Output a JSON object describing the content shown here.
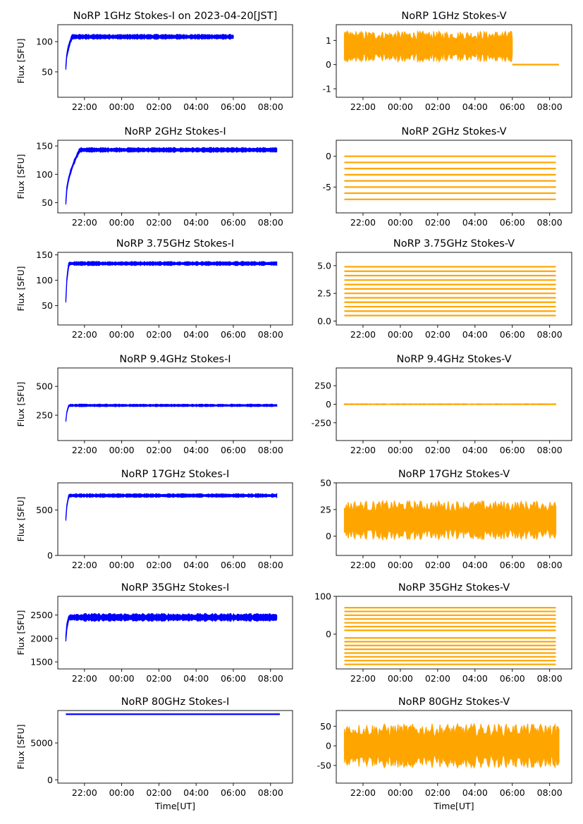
{
  "colors": {
    "stokes_i": "#0000ff",
    "stokes_v": "#ffa500",
    "axis": "#000000",
    "background": "#ffffff"
  },
  "time_ticks": [
    "22:00",
    "00:00",
    "02:00",
    "04:00",
    "06:00",
    "08:00"
  ],
  "ylabel_left": "Flux [SFU]",
  "xlabel_bottom": "Time[UT]",
  "chart_data": [
    {
      "type": "scatter",
      "title": "NoRP 1GHz Stokes-I on 2023-04-20[JST]",
      "ylabel": "Flux [SFU]",
      "xlabel": "",
      "x_range": [
        "20:34",
        "09:11"
      ],
      "ylim": [
        8,
        128
      ],
      "yticks": [
        50,
        100
      ],
      "series": [
        {
          "color": "#0000ff",
          "shape": "rise",
          "start": "21:00",
          "end": "06:00",
          "rise_to": "21:20",
          "y0": 57,
          "level": 108,
          "spread": 3
        }
      ]
    },
    {
      "type": "scatter",
      "title": "NoRP 1GHz Stokes-V",
      "ylabel": "",
      "xlabel": "",
      "x_range": [
        "20:34",
        "09:11"
      ],
      "ylim": [
        -1.35,
        1.65
      ],
      "yticks": [
        -1,
        0,
        1
      ],
      "series": [
        {
          "color": "#ffa500",
          "shape": "noise",
          "start": "21:00",
          "end": "06:00",
          "level": 0.75,
          "spread": 0.45
        },
        {
          "color": "#ffa500",
          "shape": "flat",
          "start": "06:00",
          "end": "08:30",
          "level": 0
        }
      ]
    },
    {
      "type": "scatter",
      "title": "NoRP 2GHz Stokes-I",
      "ylabel": "Flux [SFU]",
      "xlabel": "",
      "x_range": [
        "20:34",
        "09:11"
      ],
      "ylim": [
        32,
        160
      ],
      "yticks": [
        50,
        100,
        150
      ],
      "series": [
        {
          "color": "#0000ff",
          "shape": "rise",
          "start": "21:00",
          "end": "08:20",
          "rise_to": "21:45",
          "y0": 50,
          "level": 143,
          "spread": 3
        }
      ]
    },
    {
      "type": "scatter",
      "title": "NoRP 2GHz Stokes-V",
      "ylabel": "",
      "xlabel": "",
      "x_range": [
        "20:34",
        "09:11"
      ],
      "ylim": [
        -9.2,
        2.6
      ],
      "yticks": [
        -5,
        0
      ],
      "series": [
        {
          "color": "#ffa500",
          "shape": "stripes",
          "start": "21:00",
          "end": "08:20",
          "levels": [
            0,
            -1,
            -2,
            -3,
            -4,
            -5,
            -6,
            -7
          ]
        }
      ]
    },
    {
      "type": "scatter",
      "title": "NoRP 3.75GHz Stokes-I",
      "ylabel": "Flux [SFU]",
      "xlabel": "",
      "x_range": [
        "20:34",
        "09:11"
      ],
      "ylim": [
        12,
        155
      ],
      "yticks": [
        50,
        100,
        150
      ],
      "series": [
        {
          "color": "#0000ff",
          "shape": "rise",
          "start": "21:00",
          "end": "08:20",
          "rise_to": "21:10",
          "y0": 60,
          "level": 133,
          "spread": 3
        }
      ]
    },
    {
      "type": "scatter",
      "title": "NoRP 3.75GHz Stokes-V",
      "ylabel": "",
      "xlabel": "",
      "x_range": [
        "20:34",
        "09:11"
      ],
      "ylim": [
        -0.35,
        6.2
      ],
      "yticks": [
        0,
        2.5,
        5
      ],
      "ytick_labels": [
        "0.0",
        "2.5",
        "5.0"
      ],
      "series": [
        {
          "color": "#ffa500",
          "shape": "stripes",
          "start": "21:00",
          "end": "08:20",
          "levels": [
            0.5,
            0.9,
            1.3,
            1.7,
            2.1,
            2.5,
            2.9,
            3.3,
            3.7,
            4.1,
            4.5,
            4.9
          ]
        }
      ]
    },
    {
      "type": "scatter",
      "title": "NoRP 9.4GHz Stokes-I",
      "ylabel": "Flux [SFU]",
      "xlabel": "",
      "x_range": [
        "20:34",
        "09:11"
      ],
      "ylim": [
        30,
        660
      ],
      "yticks": [
        250,
        500
      ],
      "series": [
        {
          "color": "#0000ff",
          "shape": "rise",
          "start": "21:00",
          "end": "08:20",
          "rise_to": "21:10",
          "y0": 200,
          "level": 335,
          "spread": 8
        }
      ]
    },
    {
      "type": "scatter",
      "title": "NoRP 9.4GHz Stokes-V",
      "ylabel": "",
      "xlabel": "",
      "x_range": [
        "20:34",
        "09:11"
      ],
      "ylim": [
        -490,
        490
      ],
      "yticks": [
        -250,
        0,
        250
      ],
      "series": [
        {
          "color": "#ffa500",
          "shape": "noise",
          "start": "21:00",
          "end": "08:20",
          "level": 0,
          "spread": 5
        }
      ]
    },
    {
      "type": "scatter",
      "title": "NoRP 17GHz Stokes-I",
      "ylabel": "Flux [SFU]",
      "xlabel": "",
      "x_range": [
        "20:34",
        "09:11"
      ],
      "ylim": [
        0,
        800
      ],
      "yticks": [
        0,
        500
      ],
      "series": [
        {
          "color": "#0000ff",
          "shape": "rise",
          "start": "21:00",
          "end": "08:20",
          "rise_to": "21:10",
          "y0": 400,
          "level": 660,
          "spread": 15
        }
      ]
    },
    {
      "type": "scatter",
      "title": "NoRP 17GHz Stokes-V",
      "ylabel": "",
      "xlabel": "",
      "x_range": [
        "20:34",
        "09:11"
      ],
      "ylim": [
        -18,
        50
      ],
      "yticks": [
        0,
        25,
        50
      ],
      "series": [
        {
          "color": "#ffa500",
          "shape": "noise",
          "start": "21:00",
          "end": "08:20",
          "level": 15,
          "spread": 13
        }
      ]
    },
    {
      "type": "scatter",
      "title": "NoRP 35GHz Stokes-I",
      "ylabel": "Flux [SFU]",
      "xlabel": "",
      "x_range": [
        "20:34",
        "09:11"
      ],
      "ylim": [
        1350,
        2900
      ],
      "yticks": [
        1500,
        2000,
        2500
      ],
      "series": [
        {
          "color": "#0000ff",
          "shape": "rise",
          "start": "21:00",
          "end": "08:20",
          "rise_to": "21:10",
          "y0": 2000,
          "level": 2450,
          "spread": 60
        }
      ]
    },
    {
      "type": "scatter",
      "title": "NoRP 35GHz Stokes-V",
      "ylabel": "",
      "xlabel": "",
      "x_range": [
        "20:34",
        "09:11"
      ],
      "ylim": [
        -92,
        100
      ],
      "yticks": [
        0,
        100
      ],
      "series": [
        {
          "color": "#ffa500",
          "shape": "stripes",
          "start": "21:00",
          "end": "08:20",
          "levels": [
            70,
            60,
            50,
            40,
            30,
            20,
            10,
            -10,
            -20,
            -30,
            -40,
            -50,
            -60,
            -70,
            -80
          ]
        }
      ]
    },
    {
      "type": "scatter",
      "title": "NoRP 80GHz Stokes-I",
      "ylabel": "Flux [SFU]",
      "xlabel": "Time[UT]",
      "x_range": [
        "20:34",
        "09:11"
      ],
      "ylim": [
        -450,
        9400
      ],
      "yticks": [
        0,
        5000
      ],
      "series": [
        {
          "color": "#0000ff",
          "shape": "flat",
          "start": "21:00",
          "end": "08:30",
          "level": 8900
        }
      ]
    },
    {
      "type": "scatter",
      "title": "NoRP 80GHz Stokes-V",
      "ylabel": "",
      "xlabel": "Time[UT]",
      "x_range": [
        "20:34",
        "09:11"
      ],
      "ylim": [
        -95,
        90
      ],
      "yticks": [
        -50,
        0,
        50
      ],
      "series": [
        {
          "color": "#ffa500",
          "shape": "noise",
          "start": "21:00",
          "end": "08:30",
          "level": 0,
          "spread": 40
        }
      ]
    }
  ]
}
